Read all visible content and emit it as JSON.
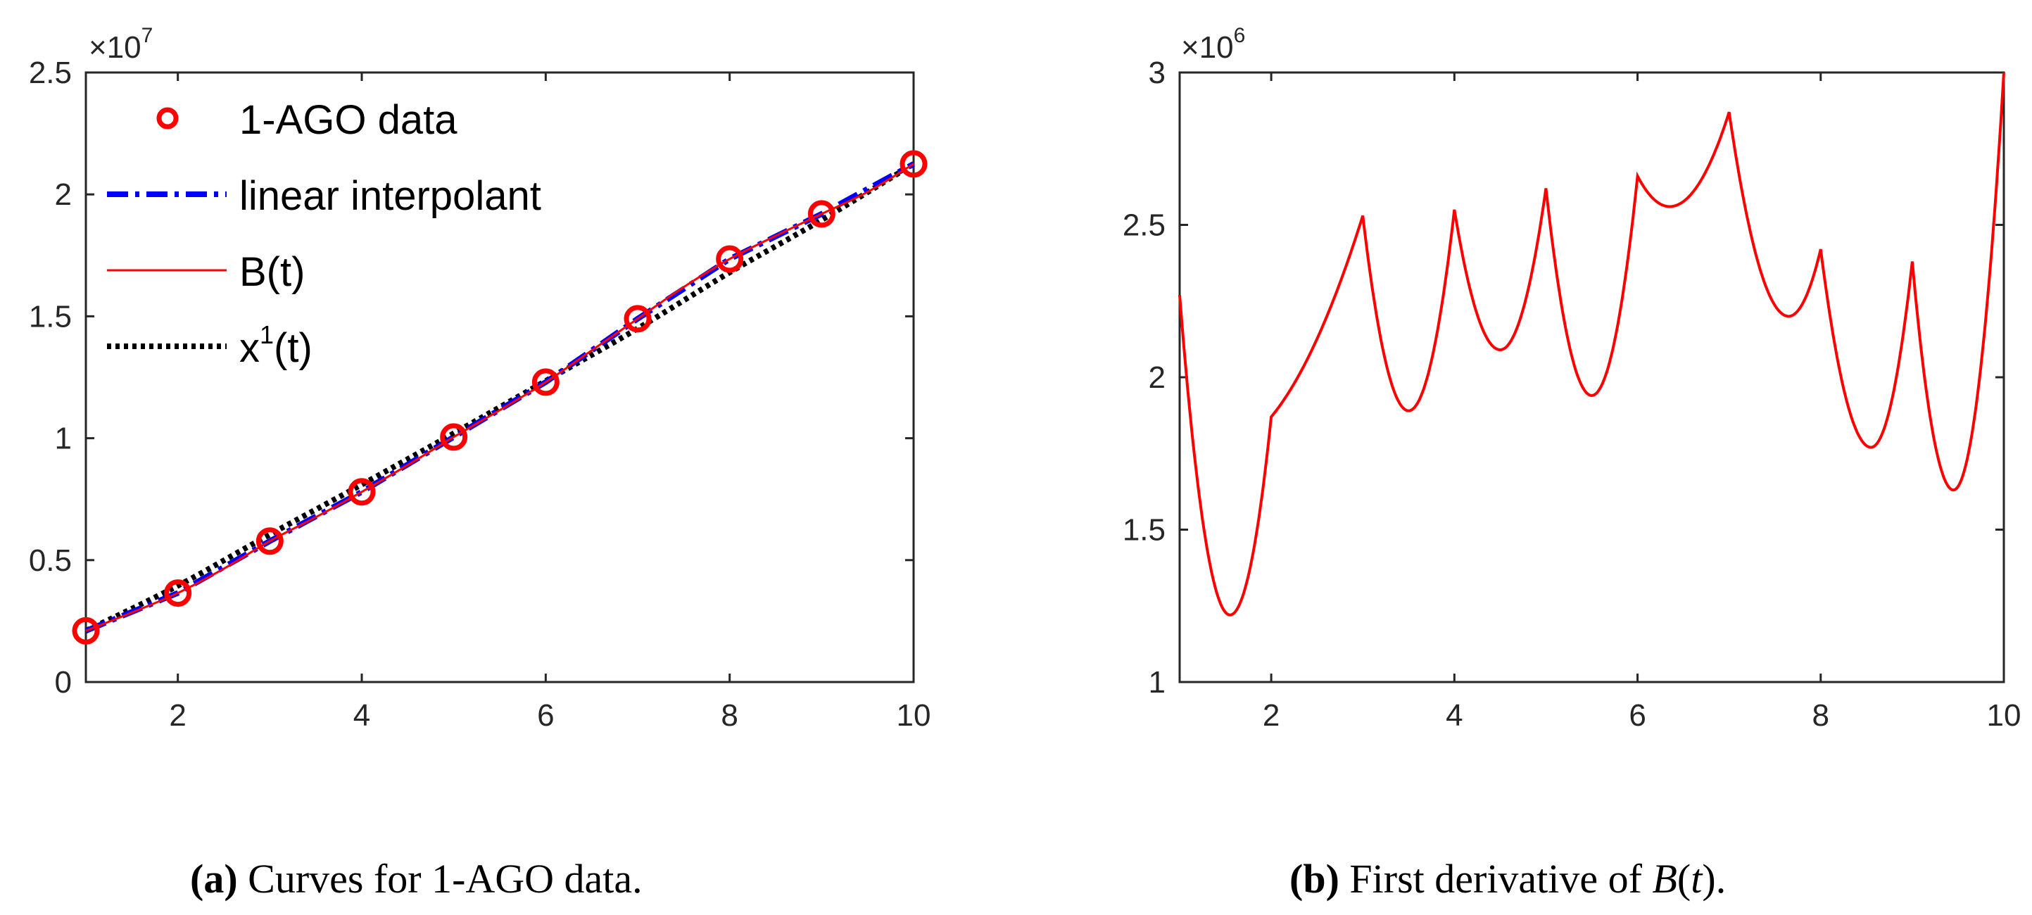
{
  "chart_data": [
    {
      "type": "line",
      "panel": "a",
      "xlim": [
        1,
        10
      ],
      "ylim": [
        0,
        2.5
      ],
      "y_exponent": "7",
      "x_ticks": [
        2,
        4,
        6,
        8,
        10
      ],
      "x_tick_labels": [
        "2",
        "4",
        "6",
        "8",
        "10"
      ],
      "y_ticks": [
        0,
        0.5,
        1,
        1.5,
        2,
        2.5
      ],
      "y_tick_labels": [
        "0",
        "0.5",
        "1",
        "1.5",
        "2",
        "2.5"
      ],
      "multiplier_base": "×10",
      "legend_position": "top-left",
      "legend": [
        "1-AGO data",
        "linear interpolant",
        "B(t)",
        "x",
        "1",
        "(t)"
      ],
      "series": [
        {
          "name": "1-AGO data",
          "style": "markers",
          "marker": "circle",
          "color": "#ff0000",
          "x": [
            1,
            2,
            3,
            4,
            5,
            6,
            7,
            8,
            9,
            10
          ],
          "y": [
            0.21,
            0.365,
            0.578,
            0.78,
            1.005,
            1.23,
            1.49,
            1.735,
            1.92,
            2.125
          ]
        },
        {
          "name": "linear interpolant",
          "style": "dashdot",
          "color": "#0000ff",
          "x": [
            1,
            2,
            3,
            4,
            5,
            6,
            7,
            8,
            9,
            10
          ],
          "y": [
            0.21,
            0.365,
            0.578,
            0.78,
            1.005,
            1.23,
            1.49,
            1.735,
            1.92,
            2.125
          ]
        },
        {
          "name": "B(t)",
          "style": "solid",
          "color": "#ff0000",
          "x": [
            1,
            1.5,
            2,
            2.5,
            3,
            3.5,
            4,
            4.5,
            5,
            5.5,
            6,
            6.5,
            7,
            7.5,
            8,
            8.5,
            9,
            9.5,
            10
          ],
          "y": [
            0.21,
            0.285,
            0.365,
            0.465,
            0.578,
            0.676,
            0.78,
            0.89,
            1.005,
            1.115,
            1.23,
            1.36,
            1.49,
            1.62,
            1.735,
            1.83,
            1.92,
            2.01,
            2.125
          ]
        },
        {
          "name": "x1(t)",
          "style": "dotted",
          "color": "#000000",
          "x": [
            1,
            2,
            3,
            4,
            5,
            6,
            7,
            8,
            9,
            10
          ],
          "y": [
            0.21,
            0.395,
            0.605,
            0.81,
            1.02,
            1.235,
            1.45,
            1.68,
            1.895,
            2.125
          ]
        }
      ]
    },
    {
      "type": "line",
      "panel": "b",
      "xlim": [
        1,
        10
      ],
      "ylim": [
        1,
        3
      ],
      "y_exponent": "6",
      "x_ticks": [
        2,
        4,
        6,
        8,
        10
      ],
      "x_tick_labels": [
        "2",
        "4",
        "6",
        "8",
        "10"
      ],
      "y_ticks": [
        1,
        1.5,
        2,
        2.5,
        3
      ],
      "y_tick_labels": [
        "1",
        "1.5",
        "2",
        "2.5",
        "3"
      ],
      "multiplier_base": "×10",
      "series": [
        {
          "name": "B'(t)",
          "style": "solid",
          "color": "#ff0000",
          "segments": [
            {
              "x0": 1,
              "x1": 2,
              "ya": 2.27,
              "ymin": 1.22,
              "xmin": 1.55,
              "yb": 1.87
            },
            {
              "x0": 2,
              "x1": 3,
              "ya": 1.87,
              "ymin": 1.87,
              "xmin": 2.0,
              "yb": 2.53
            },
            {
              "x0": 3,
              "x1": 4,
              "ya": 2.53,
              "ymin": 1.89,
              "xmin": 3.5,
              "yb": 2.55
            },
            {
              "x0": 4,
              "x1": 5,
              "ya": 2.55,
              "ymin": 2.09,
              "xmin": 4.5,
              "yb": 2.62
            },
            {
              "x0": 5,
              "x1": 6,
              "ya": 2.62,
              "ymin": 1.94,
              "xmin": 5.5,
              "yb": 2.66
            },
            {
              "x0": 6,
              "x1": 7,
              "ya": 2.66,
              "ymin": 2.56,
              "xmin": 6.35,
              "yb": 2.87
            },
            {
              "x0": 7,
              "x1": 8,
              "ya": 2.87,
              "ymin": 2.2,
              "xmin": 7.65,
              "yb": 2.42
            },
            {
              "x0": 8,
              "x1": 9,
              "ya": 2.42,
              "ymin": 1.77,
              "xmin": 8.55,
              "yb": 2.38
            },
            {
              "x0": 9,
              "x1": 10,
              "ya": 2.38,
              "ymin": 1.63,
              "xmin": 9.45,
              "yb": 3.0
            }
          ]
        }
      ]
    }
  ],
  "captions": {
    "a_label": "(a)",
    "a_text": " Curves for 1-AGO data.",
    "b_label": "(b)",
    "b_text": " First derivative of ",
    "b_math": "B",
    "b_math_open": "(",
    "b_math_arg": "t",
    "b_math_close": ")",
    "b_end": "."
  }
}
